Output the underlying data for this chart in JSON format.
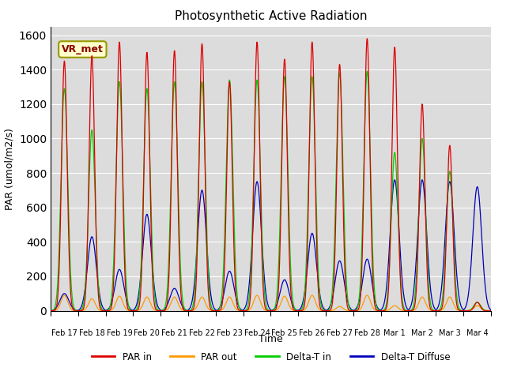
{
  "title": "Photosynthetic Active Radiation",
  "xlabel": "Time",
  "ylabel": "PAR (umol/m2/s)",
  "ylim": [
    0,
    1650
  ],
  "yticks": [
    0,
    200,
    400,
    600,
    800,
    1000,
    1200,
    1400,
    1600
  ],
  "annotation": "VR_met",
  "plot_bg_color": "#dcdcdc",
  "fig_bg_color": "#ffffff",
  "colors": {
    "PAR in": "#dd0000",
    "PAR out": "#ff9900",
    "Delta-T in": "#00cc00",
    "Delta-T Diffuse": "#0000bb"
  },
  "x_tick_labels": [
    "Feb 17",
    "Feb 18",
    "Feb 19",
    "Feb 20",
    "Feb 21",
    "Feb 22",
    "Feb 23",
    "Feb 24",
    "Feb 25",
    "Feb 26",
    "Feb 27",
    "Feb 28",
    "Mar 1",
    "Mar 2",
    "Mar 3",
    "Mar 4"
  ],
  "num_days": 16,
  "pts_per_day": 144,
  "par_in_peaks": [
    1450,
    1480,
    1560,
    1500,
    1510,
    1550,
    1330,
    1560,
    1460,
    1560,
    1430,
    1580,
    1530,
    1200,
    960,
    50
  ],
  "par_out_peaks": [
    90,
    70,
    85,
    80,
    80,
    80,
    80,
    90,
    85,
    90,
    25,
    90,
    30,
    80,
    80,
    30
  ],
  "delta_t_peaks": [
    1290,
    1050,
    1330,
    1290,
    1330,
    1330,
    1340,
    1340,
    1360,
    1360,
    1380,
    1390,
    920,
    1000,
    810,
    50
  ],
  "delta_diffuse_peaks": [
    100,
    430,
    240,
    560,
    130,
    700,
    230,
    750,
    180,
    450,
    290,
    300,
    760,
    760,
    750,
    720
  ]
}
